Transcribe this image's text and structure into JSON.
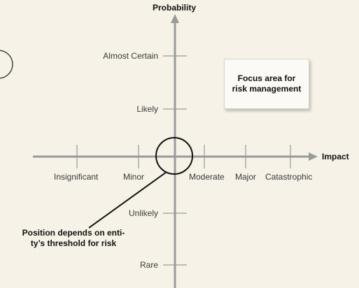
{
  "axes": {
    "y_title": "Probability",
    "x_title": "Impact"
  },
  "probability_levels": [
    "Almost Certain",
    "Likely",
    "Unlikely",
    "Rare"
  ],
  "impact_levels": [
    "Insignificant",
    "Minor",
    "Moderate",
    "Major",
    "Catastrophic"
  ],
  "focus_box": {
    "line1": "Focus area for",
    "line2": "risk management"
  },
  "note": {
    "line1": "Position depends on enti-",
    "line2": "ty’s threshold for risk"
  },
  "colors": {
    "background": "#f6f2e7",
    "axis": "#9a9a9a",
    "circle": "#111111"
  }
}
